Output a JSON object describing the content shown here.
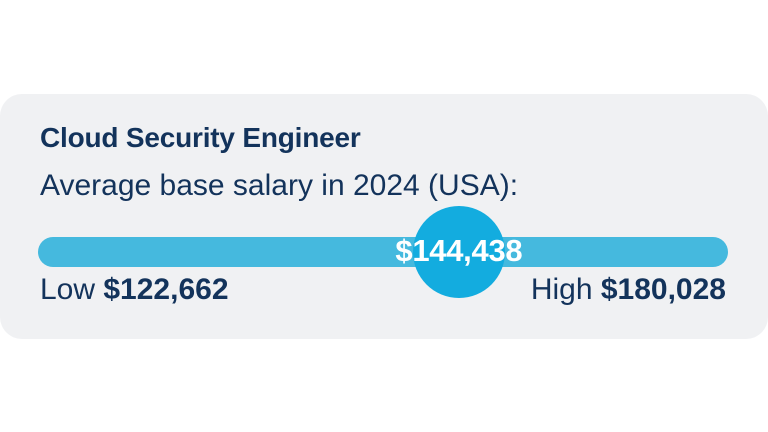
{
  "job": {
    "title": "Cloud Security Engineer"
  },
  "salary": {
    "subtitle": "Average base salary in 2024 (USA):",
    "average_label": "$144,438",
    "average_value": 144438,
    "low_word": "Low",
    "low_value_label": "$122,662",
    "low_value": 122662,
    "high_word": "High",
    "high_value_label": "$180,028",
    "high_value": 180028
  },
  "colors": {
    "title": "#13335b",
    "track": "#45b9de",
    "marker": "#13acdf",
    "card": "#f0f1f3"
  }
}
